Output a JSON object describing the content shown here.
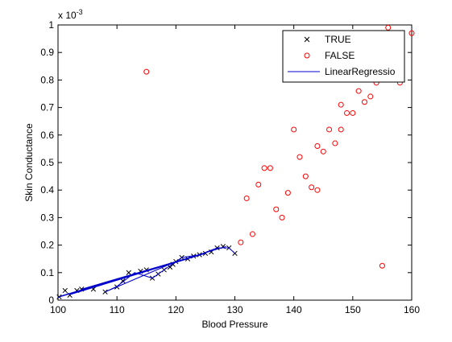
{
  "chart_data": {
    "type": "scatter",
    "title": "",
    "xlabel": "Blood Pressure",
    "ylabel": "Skin Conductance",
    "xlim": [
      100,
      160
    ],
    "ylim": [
      0,
      0.001
    ],
    "y_exponent_label": "x 10",
    "y_exponent_power": "-3",
    "xticks": [
      100,
      110,
      120,
      130,
      140,
      150,
      160
    ],
    "xtick_labels": [
      "100",
      "110",
      "120",
      "130",
      "140",
      "150",
      "160"
    ],
    "yticks": [
      0,
      0.0001,
      0.0002,
      0.0003,
      0.0004,
      0.0005,
      0.0006,
      0.0007,
      0.0008,
      0.0009,
      0.001
    ],
    "ytick_labels": [
      "0",
      "0.1",
      "0.2",
      "0.3",
      "0.4",
      "0.5",
      "0.6",
      "0.7",
      "0.8",
      "0.9",
      "1"
    ],
    "grid": false,
    "legend_position": "top-right",
    "series": [
      {
        "name": "TRUE",
        "marker": "x",
        "color": "#000000",
        "points": [
          [
            100.2,
            1.2e-05
          ],
          [
            101.2,
            3.5e-05
          ],
          [
            102.0,
            1.8e-05
          ],
          [
            103.2,
            3.5e-05
          ],
          [
            104.0,
            4e-05
          ],
          [
            106.0,
            4e-05
          ],
          [
            108.0,
            3e-05
          ],
          [
            110.0,
            4.8e-05
          ],
          [
            111.0,
            7e-05
          ],
          [
            112.0,
            0.0001
          ],
          [
            114.0,
            0.000105
          ],
          [
            115.0,
            0.00011
          ],
          [
            116.0,
            8e-05
          ],
          [
            117.0,
            9.5e-05
          ],
          [
            118.0,
            0.00011
          ],
          [
            119.0,
            0.00012
          ],
          [
            119.5,
            0.00013
          ],
          [
            120.0,
            0.00014
          ],
          [
            121.0,
            0.000155
          ],
          [
            122.0,
            0.00015
          ],
          [
            123.0,
            0.00016
          ],
          [
            124.0,
            0.000165
          ],
          [
            125.0,
            0.00017
          ],
          [
            126.0,
            0.000175
          ],
          [
            127.0,
            0.00019
          ],
          [
            128.0,
            0.000195
          ],
          [
            129.0,
            0.00019
          ],
          [
            130.0,
            0.00017
          ]
        ]
      },
      {
        "name": "FALSE",
        "marker": "o",
        "color": "#ff0000",
        "points": [
          [
            115.0,
            0.00083
          ],
          [
            131.0,
            0.00021
          ],
          [
            132.0,
            0.00037
          ],
          [
            133.0,
            0.00024
          ],
          [
            134.0,
            0.00042
          ],
          [
            135.0,
            0.00048
          ],
          [
            136.0,
            0.00048
          ],
          [
            137.0,
            0.00033
          ],
          [
            138.0,
            0.0003
          ],
          [
            139.0,
            0.00039
          ],
          [
            140.0,
            0.00062
          ],
          [
            141.0,
            0.00052
          ],
          [
            142.0,
            0.00045
          ],
          [
            143.0,
            0.00041
          ],
          [
            144.0,
            0.0004
          ],
          [
            144.0,
            0.00056
          ],
          [
            145.0,
            0.00054
          ],
          [
            146.0,
            0.00062
          ],
          [
            147.0,
            0.00057
          ],
          [
            148.0,
            0.00062
          ],
          [
            148.0,
            0.00071
          ],
          [
            149.0,
            0.00068
          ],
          [
            150.0,
            0.00068
          ],
          [
            151.0,
            0.00076
          ],
          [
            152.0,
            0.00072
          ],
          [
            153.0,
            0.00074
          ],
          [
            154.0,
            0.00079
          ],
          [
            155.0,
            0.000125
          ],
          [
            156.0,
            0.00099
          ],
          [
            158.0,
            0.00079
          ],
          [
            160.0,
            0.00097
          ]
        ]
      },
      {
        "name": "LinearRegressio",
        "marker": "line",
        "color": "#0000cc",
        "points": [
          [
            100.0,
            1e-05
          ],
          [
            128.5,
            0.000195
          ],
          [
            100.5,
            1.5e-05
          ],
          [
            125.0,
            0.00017
          ],
          [
            102.0,
            2e-05
          ],
          [
            122.0,
            0.00015
          ],
          [
            104.0,
            4e-05
          ],
          [
            120.0,
            0.00014
          ],
          [
            108.0,
            3e-05
          ],
          [
            110.0,
            5e-05
          ],
          [
            113.0,
            0.0001
          ],
          [
            116.0,
            8e-05
          ],
          [
            118.0,
            0.00011
          ],
          [
            121.0,
            0.000155
          ],
          [
            124.0,
            0.000165
          ],
          [
            127.0,
            0.00019
          ],
          [
            129.0,
            0.00019
          ],
          [
            130.0,
            0.00017
          ]
        ]
      }
    ]
  }
}
